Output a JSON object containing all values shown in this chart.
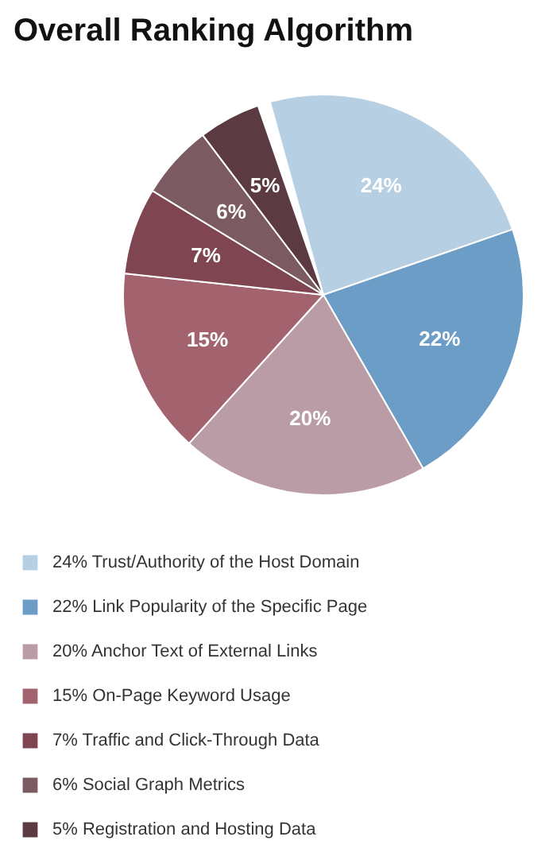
{
  "chart_data": {
    "type": "pie",
    "title": "Overall Ranking Algorithm",
    "categories": [
      "Trust/Authority of the Host Domain",
      "Link Popularity of the Specific Page",
      "Anchor Text of External Links",
      "On-Page Keyword Usage",
      "Traffic and Click-Through Data",
      "Social Graph Metrics",
      "Registration and Hosting Data"
    ],
    "values": [
      24,
      22,
      20,
      15,
      7,
      6,
      5
    ],
    "colors": [
      "#b7cfe2",
      "#6b9dc7",
      "#b99ca5",
      "#a2636f",
      "#7f4652",
      "#7b5a61",
      "#5b3a41"
    ],
    "value_labels": [
      "24%",
      "22%",
      "20%",
      "15%",
      "7%",
      "6%",
      "5%"
    ],
    "legend": "bottom"
  }
}
